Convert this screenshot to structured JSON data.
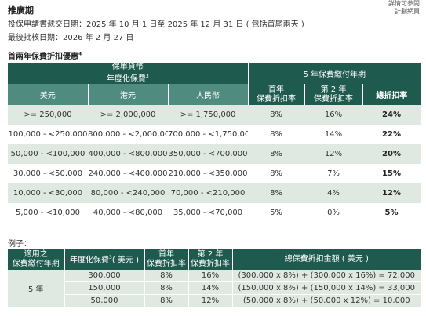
{
  "corner_note": [
    "詳情可參閱",
    "計劃網頁"
  ],
  "promo_period": {
    "title": "推廣期",
    "application_line": "投保申請書遞交日期：2025 年 10 月 1 日至 2025 年 12 月 31 日 ( 包括首尾兩天 )",
    "approval_line": "最後批核日期：2026 年 2 月 27 日"
  },
  "discount_section": {
    "title": "首兩年保費折扣優惠",
    "title_sup": "4"
  },
  "discount_table": {
    "group_header_line1": "保單貨幣",
    "group_header_line2": "年度化保費",
    "group_header_sup": "3",
    "right_group_header": "5 年保費繳付年期",
    "col_usd": "美元",
    "col_hkd": "港元",
    "col_rmb": "人民幣",
    "col_first_year": [
      "首年",
      "保費折扣率"
    ],
    "col_second_year": [
      "第 2 年",
      "保費折扣率"
    ],
    "col_total": "總折扣率",
    "rows": [
      {
        "usd": ">= 250,000",
        "hkd": ">= 2,000,000",
        "rmb": ">= 1,750,000",
        "y1": "8%",
        "y2": "16%",
        "total": "24%"
      },
      {
        "usd": "100,000 - <250,000",
        "hkd": "800,000 - <2,000,000",
        "rmb": "700,000 - <1,750,000",
        "y1": "8%",
        "y2": "14%",
        "total": "22%"
      },
      {
        "usd": "50,000 - <100,000",
        "hkd": "400,000 - <800,000",
        "rmb": "350,000 - <700,000",
        "y1": "8%",
        "y2": "12%",
        "total": "20%"
      },
      {
        "usd": "30,000 - <50,000",
        "hkd": "240,000 - <400,000",
        "rmb": "210,000 - <350,000",
        "y1": "8%",
        "y2": "7%",
        "total": "15%"
      },
      {
        "usd": "10,000 - <30,000",
        "hkd": "80,000 - <240,000",
        "rmb": "70,000 - <210,000",
        "y1": "8%",
        "y2": "4%",
        "total": "12%"
      },
      {
        "usd": "5,000 - <10,000",
        "hkd": "40,000 - <80,000",
        "rmb": "35,000 - <70,000",
        "y1": "5%",
        "y2": "0%",
        "total": "5%"
      }
    ]
  },
  "example": {
    "label": "例子：",
    "headers": {
      "term": [
        "適用之",
        "保費繳付年期"
      ],
      "premium": "年度化保費",
      "premium_sup": "3",
      "premium_suffix": "( 美元 )",
      "y1": [
        "首年",
        "保費折扣率"
      ],
      "y2": [
        "第 2 年",
        "保費折扣率"
      ],
      "total": "總保費折扣金額 ( 美元 )"
    },
    "term_value": "5 年",
    "rows": [
      {
        "premium": "300,000",
        "y1": "8%",
        "y2": "16%",
        "formula": "(300,000 x 8%) + (300,000 x 16%) = 72,000"
      },
      {
        "premium": "150,000",
        "y1": "8%",
        "y2": "14%",
        "formula": "(150,000 x 8%) + (150,000 x 14%) = 33,000"
      },
      {
        "premium": "50,000",
        "y1": "8%",
        "y2": "12%",
        "formula": "(50,000 x 8%) + (50,000 x 12%) = 10,000"
      }
    ]
  }
}
